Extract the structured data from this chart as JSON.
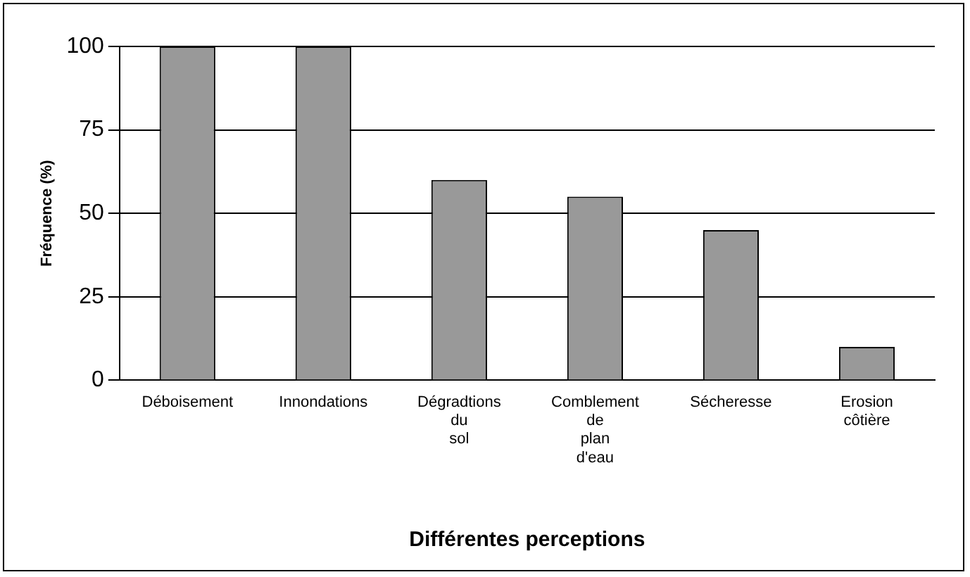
{
  "chart_data": {
    "type": "bar",
    "xlabel": "Différentes perceptions",
    "ylabel": "Fréquence (%)",
    "categories": [
      "Déboisement",
      "Innondations",
      "Dégradtions du sol",
      "Comblement de plan d'eau",
      "Sécheresse",
      "Erosion côtière"
    ],
    "values": [
      100,
      100,
      60,
      55,
      45,
      10
    ],
    "color": "#999999",
    "ylim": [
      0,
      100
    ],
    "yticks": [
      {
        "value": 0,
        "label": "0"
      },
      25,
      50,
      75,
      100
    ],
    "grid": "y",
    "legend": false
  }
}
